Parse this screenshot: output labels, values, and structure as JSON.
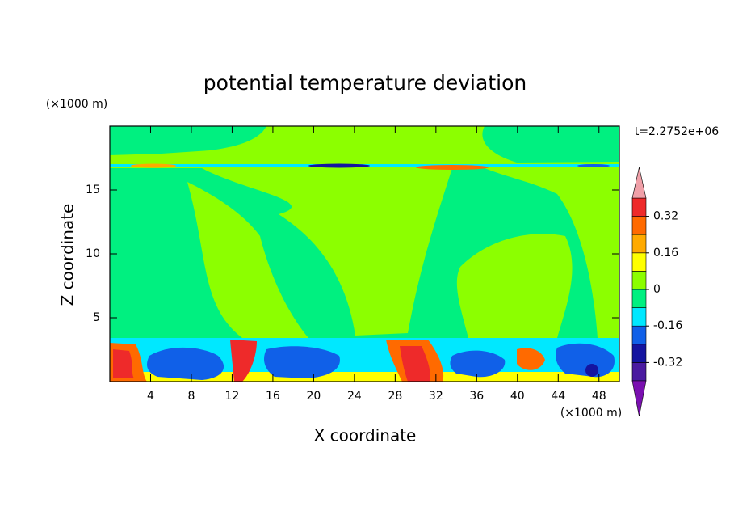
{
  "chart_data": {
    "type": "contourf",
    "title": "potential temperature deviation",
    "xlabel": "X coordinate",
    "ylabel": "Z coordinate",
    "x_unit": "(×1000 m)",
    "y_unit": "(×1000 m)",
    "annotation": "t=2.2752e+06",
    "xlim": [
      0,
      50
    ],
    "ylim": [
      0,
      20
    ],
    "xticks": [
      4,
      8,
      12,
      16,
      20,
      24,
      28,
      32,
      36,
      40,
      44,
      48
    ],
    "yticks": [
      5,
      10,
      15
    ],
    "colorbar": {
      "levels": [
        -0.4,
        -0.32,
        -0.24,
        -0.16,
        -0.08,
        0,
        0.08,
        0.16,
        0.24,
        0.32,
        0.4
      ],
      "ticks": [
        -0.32,
        -0.16,
        0,
        0.16,
        0.32
      ],
      "colors": [
        "#7a10b0",
        "#4a1aa0",
        "#1414a0",
        "#1060e8",
        "#00e8ff",
        "#00f080",
        "#8cff00",
        "#ffff00",
        "#ffaa00",
        "#ff6a00",
        "#ee2a2a",
        "#f0a0a8"
      ]
    }
  }
}
